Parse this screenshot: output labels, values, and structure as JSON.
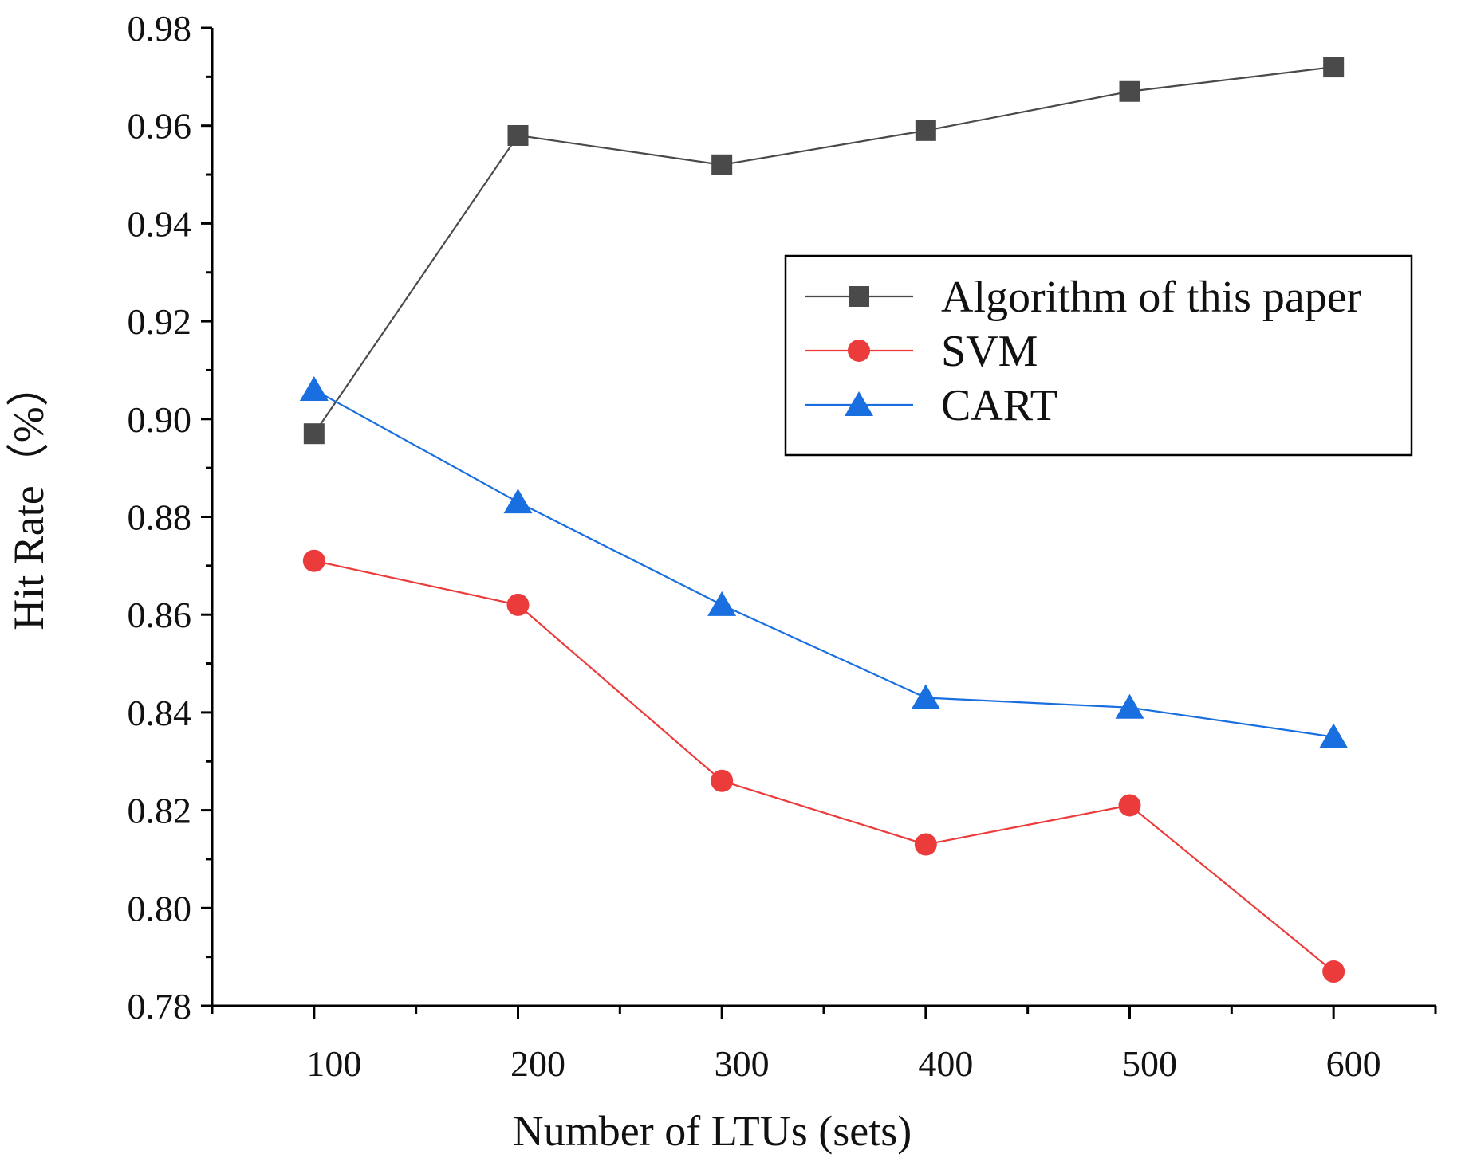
{
  "chart_data": {
    "type": "line",
    "title": "",
    "xlabel": "Number of LTUs (sets)",
    "ylabel": "Hit Rate（%）",
    "x": [
      100,
      200,
      300,
      400,
      500,
      600
    ],
    "x_tick_labels": [
      "100",
      "200",
      "300",
      "400",
      "500",
      "600"
    ],
    "xlim": [
      50,
      650
    ],
    "ylim": [
      0.78,
      0.98
    ],
    "y_ticks": [
      0.78,
      0.8,
      0.82,
      0.84,
      0.86,
      0.88,
      0.9,
      0.92,
      0.94,
      0.96,
      0.98
    ],
    "y_tick_labels": [
      "0.78",
      "0.80",
      "0.82",
      "0.84",
      "0.86",
      "0.88",
      "0.90",
      "0.92",
      "0.94",
      "0.96",
      "0.98"
    ],
    "grid": false,
    "legend_position": "upper-right (inside plot)",
    "series": [
      {
        "name": "Algorithm of this paper",
        "marker": "square",
        "color": "#4a4a4a",
        "values": [
          0.897,
          0.958,
          0.952,
          0.959,
          0.967,
          0.972
        ]
      },
      {
        "name": "SVM",
        "marker": "circle",
        "color": "#ec3b3b",
        "values": [
          0.871,
          0.862,
          0.826,
          0.813,
          0.821,
          0.787
        ]
      },
      {
        "name": "CART",
        "marker": "triangle",
        "color": "#1a6fe0",
        "values": [
          0.906,
          0.883,
          0.862,
          0.843,
          0.841,
          0.835
        ]
      }
    ]
  }
}
